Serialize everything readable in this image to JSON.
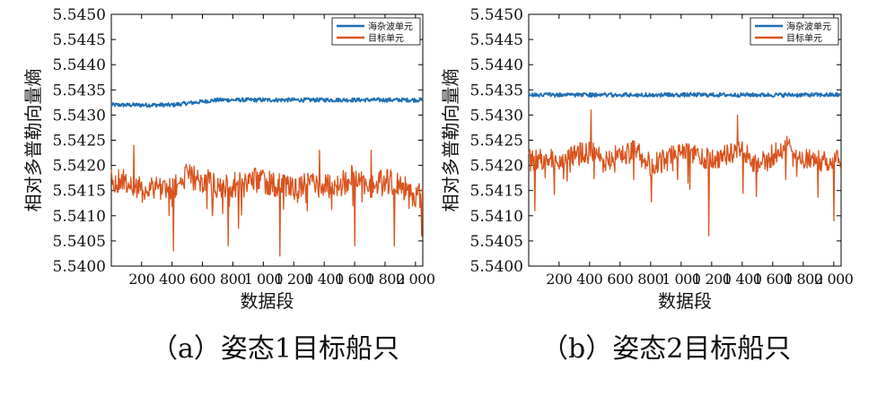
{
  "series_colors": [
    "#1f6fb4",
    "#d9541e"
  ],
  "panels": [
    {
      "caption": "（a）姿态1目标船只",
      "chart_data": {
        "type": "line",
        "xlabel": "数据段",
        "ylabel": "相对多普勒向量熵",
        "xlim": [
          1,
          2048
        ],
        "ylim": [
          5.54,
          5.545
        ],
        "xticks": [
          200,
          400,
          600,
          800,
          1000,
          1200,
          1400,
          1600,
          1800,
          2000
        ],
        "xticklabels": [
          "200",
          "400",
          "600",
          "800",
          "1 000",
          "1 200",
          "1 400",
          "1 600",
          "1 800",
          "2 000"
        ],
        "yticks": [
          5.54,
          5.5405,
          5.541,
          5.5415,
          5.542,
          5.5425,
          5.543,
          5.5435,
          5.544,
          5.5445,
          5.545
        ],
        "yticklabels": [
          "5.5400",
          "5.5405",
          "5.5410",
          "5.5415",
          "5.5420",
          "5.5425",
          "5.5430",
          "5.5435",
          "5.5440",
          "5.5445",
          "5.5450"
        ],
        "legend_position": "top-right",
        "series": [
          {
            "name": "海杂波单元",
            "color": "#1f6fb4",
            "mean": 5.54325,
            "noise": 4e-05,
            "values": [
              [
                100,
                5.5432
              ],
              [
                400,
                5.5432
              ],
              [
                700,
                5.5433
              ],
              [
                1000,
                5.5433
              ],
              [
                1300,
                5.5433
              ],
              [
                1600,
                5.5433
              ],
              [
                2000,
                5.5433
              ]
            ]
          },
          {
            "name": "目标单元",
            "color": "#d9541e",
            "mean": 5.54165,
            "noise": 0.00025,
            "values": [
              [
                100,
                5.5417
              ],
              [
                200,
                5.5415
              ],
              [
                300,
                5.5416
              ],
              [
                400,
                5.5415
              ],
              [
                500,
                5.5418
              ],
              [
                600,
                5.5417
              ],
              [
                700,
                5.5416
              ],
              [
                800,
                5.5416
              ],
              [
                900,
                5.5417
              ],
              [
                1000,
                5.5417
              ],
              [
                1100,
                5.5416
              ],
              [
                1200,
                5.5415
              ],
              [
                1300,
                5.5417
              ],
              [
                1400,
                5.5416
              ],
              [
                1500,
                5.5416
              ],
              [
                1600,
                5.5418
              ],
              [
                1700,
                5.5416
              ],
              [
                1800,
                5.5417
              ],
              [
                1900,
                5.5416
              ],
              [
                2000,
                5.5414
              ]
            ],
            "extremes": [
              [
                150,
                5.5424
              ],
              [
                410,
                5.5403
              ],
              [
                770,
                5.5404
              ],
              [
                1110,
                5.5402
              ],
              [
                1370,
                5.5423
              ],
              [
                1600,
                5.5404
              ],
              [
                1710,
                5.5423
              ],
              [
                1860,
                5.5404
              ],
              [
                2040,
                5.5406
              ]
            ]
          }
        ]
      }
    },
    {
      "caption": "（b）姿态2目标船只",
      "chart_data": {
        "type": "line",
        "xlabel": "数据段",
        "ylabel": "相对多普勒向量熵",
        "xlim": [
          1,
          2048
        ],
        "ylim": [
          5.54,
          5.545
        ],
        "xticks": [
          200,
          400,
          600,
          800,
          1000,
          1200,
          1400,
          1600,
          1800,
          2000
        ],
        "xticklabels": [
          "200",
          "400",
          "600",
          "800",
          "1 000",
          "1 200",
          "1 400",
          "1 600",
          "1 800",
          "2 000"
        ],
        "yticks": [
          5.54,
          5.5405,
          5.541,
          5.5415,
          5.542,
          5.5425,
          5.543,
          5.5435,
          5.544,
          5.5445,
          5.545
        ],
        "yticklabels": [
          "5.5400",
          "5.5405",
          "5.5410",
          "5.5415",
          "5.5420",
          "5.5425",
          "5.5430",
          "5.5435",
          "5.5440",
          "5.5445",
          "5.5450"
        ],
        "legend_position": "top-right",
        "series": [
          {
            "name": "海杂波单元",
            "color": "#1f6fb4",
            "mean": 5.5434,
            "noise": 4e-05,
            "values": [
              [
                100,
                5.5434
              ],
              [
                400,
                5.5434
              ],
              [
                700,
                5.5434
              ],
              [
                1000,
                5.5434
              ],
              [
                1300,
                5.5434
              ],
              [
                1600,
                5.5434
              ],
              [
                2000,
                5.5434
              ]
            ]
          },
          {
            "name": "目标单元",
            "color": "#d9541e",
            "mean": 5.5421,
            "noise": 0.00022,
            "values": [
              [
                100,
                5.5421
              ],
              [
                200,
                5.5421
              ],
              [
                300,
                5.5422
              ],
              [
                400,
                5.5423
              ],
              [
                500,
                5.5421
              ],
              [
                600,
                5.5422
              ],
              [
                700,
                5.5423
              ],
              [
                800,
                5.542
              ],
              [
                900,
                5.5421
              ],
              [
                1000,
                5.5423
              ],
              [
                1100,
                5.5422
              ],
              [
                1200,
                5.5421
              ],
              [
                1300,
                5.5422
              ],
              [
                1400,
                5.5423
              ],
              [
                1500,
                5.542
              ],
              [
                1600,
                5.5422
              ],
              [
                1700,
                5.5424
              ],
              [
                1800,
                5.5421
              ],
              [
                1900,
                5.5421
              ],
              [
                2000,
                5.5421
              ]
            ],
            "extremes": [
              [
                40,
                5.5411
              ],
              [
                410,
                5.5431
              ],
              [
                1180,
                5.5406
              ],
              [
                1370,
                5.543
              ],
              [
                2000,
                5.5409
              ]
            ]
          }
        ]
      }
    }
  ]
}
